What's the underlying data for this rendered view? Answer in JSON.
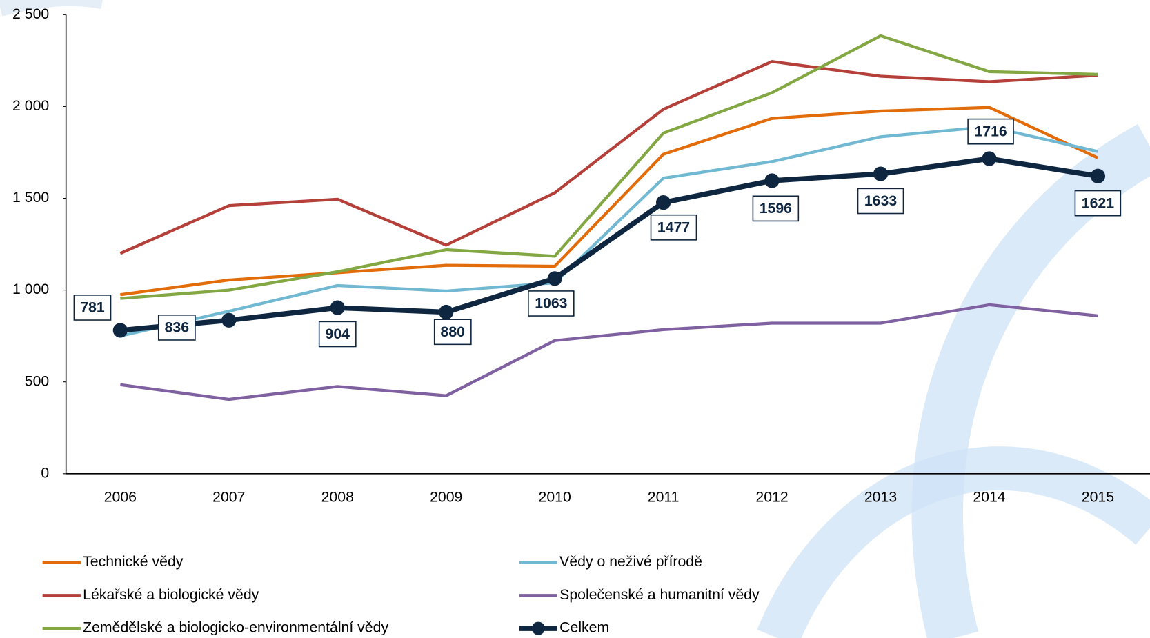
{
  "chart_data": {
    "type": "line",
    "categories": [
      "2006",
      "2007",
      "2008",
      "2009",
      "2010",
      "2011",
      "2012",
      "2013",
      "2014",
      "2015"
    ],
    "ylim": [
      0,
      2500
    ],
    "yticks": [
      0,
      500,
      {
        "value": 1000,
        "label": "1 000"
      },
      {
        "value": 1500,
        "label": "1 500"
      },
      {
        "value": 2000,
        "label": "2 000"
      },
      {
        "value": 2500,
        "label": "2 500"
      }
    ],
    "grid": false,
    "series": [
      {
        "name": "Technické vědy",
        "color": "#e36c0a",
        "values": [
          975,
          1055,
          1095,
          1135,
          1130,
          1740,
          1935,
          1975,
          1995,
          1720
        ]
      },
      {
        "name": "Vědy o neživé přírodě",
        "color": "#71b8d2",
        "values": [
          750,
          885,
          1025,
          995,
          1040,
          1610,
          1700,
          1835,
          1890,
          1755
        ]
      },
      {
        "name": "Lékařské a biologické vědy",
        "color": "#b5403a",
        "values": [
          1200,
          1460,
          1495,
          1245,
          1530,
          1985,
          2245,
          2165,
          2135,
          2170
        ]
      },
      {
        "name": "Společenské a humanitní vědy",
        "color": "#7f60a1",
        "values": [
          485,
          405,
          475,
          425,
          725,
          785,
          820,
          820,
          920,
          860
        ]
      },
      {
        "name": "Zemědělské a biologicko-environmentální vědy",
        "color": "#82a743",
        "values": [
          955,
          1000,
          1100,
          1220,
          1185,
          1855,
          2075,
          2385,
          2190,
          2175
        ]
      },
      {
        "name": "Celkem",
        "color": "#0f2640",
        "markers": true,
        "data_labels": true,
        "values": [
          781,
          836,
          904,
          880,
          1063,
          1477,
          1596,
          1633,
          1716,
          1621
        ]
      }
    ]
  }
}
